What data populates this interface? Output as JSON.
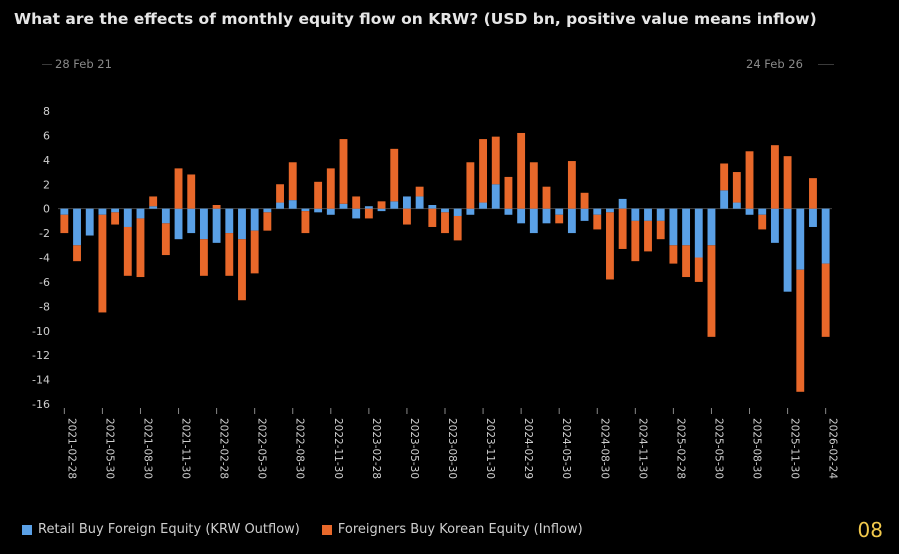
{
  "chart_data": {
    "type": "bar",
    "stacked": true,
    "title": "What are the effects of monthly equity flow on KRW? (USD bn, positive value means inflow)",
    "range_start": "28 Feb 21",
    "range_end": "24 Feb 26",
    "ylim": [
      -16,
      8
    ],
    "yticks": [
      8,
      6,
      4,
      2,
      0,
      -2,
      -4,
      -6,
      -8,
      -10,
      -12,
      -14,
      -16
    ],
    "x_tick_labels": [
      "2021-02-28",
      "2021-05-30",
      "2021-08-30",
      "2021-11-30",
      "2022-02-28",
      "2022-05-30",
      "2022-08-30",
      "2022-11-30",
      "2023-02-28",
      "2023-05-30",
      "2023-08-30",
      "2023-11-30",
      "2024-02-29",
      "2024-05-30",
      "2024-08-30",
      "2024-11-30",
      "2025-02-28",
      "2025-05-30",
      "2025-08-30",
      "2025-11-30",
      "2026-02-24"
    ],
    "categories": [
      "2021-02",
      "2021-03",
      "2021-04",
      "2021-05",
      "2021-06",
      "2021-07",
      "2021-08",
      "2021-09",
      "2021-10",
      "2021-11",
      "2021-12",
      "2022-01",
      "2022-02",
      "2022-03",
      "2022-04",
      "2022-05",
      "2022-06",
      "2022-07",
      "2022-08",
      "2022-09",
      "2022-10",
      "2022-11",
      "2022-12",
      "2023-01",
      "2023-02",
      "2023-03",
      "2023-04",
      "2023-05",
      "2023-06",
      "2023-07",
      "2023-08",
      "2023-09",
      "2023-10",
      "2023-11",
      "2023-12",
      "2024-01",
      "2024-02",
      "2024-03",
      "2024-04",
      "2024-05",
      "2024-06",
      "2024-07",
      "2024-08",
      "2024-09",
      "2024-10",
      "2024-11",
      "2024-12",
      "2025-01",
      "2025-02",
      "2025-03",
      "2025-04",
      "2025-05",
      "2025-06",
      "2025-07",
      "2025-08",
      "2025-09",
      "2025-10",
      "2025-11",
      "2025-12",
      "2026-01",
      "2026-02"
    ],
    "series": [
      {
        "name": "Retail Buy Foreign Equity (KRW Outflow)",
        "color": "#5aa0e6",
        "values": [
          -0.5,
          -3.0,
          -2.2,
          -0.5,
          -0.3,
          -1.5,
          -0.8,
          0.2,
          -1.2,
          -2.5,
          -2.0,
          -2.5,
          -2.8,
          -2.0,
          -2.5,
          -1.8,
          -0.3,
          0.5,
          0.7,
          -0.2,
          -0.3,
          -0.5,
          0.4,
          -0.8,
          0.2,
          -0.2,
          0.6,
          1.0,
          1.0,
          0.3,
          -0.3,
          -0.6,
          -0.5,
          0.5,
          2.0,
          -0.5,
          -1.2,
          -2.0,
          -1.2,
          -0.5,
          -2.0,
          -1.0,
          -0.5,
          -0.3,
          0.8,
          -1.0,
          -1.0,
          -1.0,
          -3.0,
          -3.0,
          -4.0,
          -3.0,
          1.5,
          0.5,
          -0.5,
          -0.5,
          -2.8,
          -6.8,
          -5.0,
          -1.5,
          -4.5
        ]
      },
      {
        "name": "Foreigners Buy Korean Equity (Inflow)",
        "color": "#e8682a",
        "values": [
          -1.5,
          -1.3,
          0.0,
          -8.0,
          -1.0,
          -4.0,
          -4.8,
          0.8,
          -2.6,
          3.3,
          2.8,
          -3.0,
          0.3,
          -3.5,
          -5.0,
          -3.5,
          -1.5,
          1.5,
          3.1,
          -1.8,
          2.2,
          3.3,
          5.3,
          1.0,
          -0.8,
          0.6,
          4.3,
          -1.3,
          0.8,
          -1.5,
          -1.7,
          -2.0,
          3.8,
          5.2,
          3.9,
          2.6,
          6.2,
          3.8,
          1.8,
          -0.7,
          3.9,
          1.3,
          -1.2,
          -5.5,
          -3.3,
          -3.3,
          -2.5,
          -1.5,
          -1.5,
          -2.6,
          -2.0,
          -7.5,
          2.2,
          2.5,
          4.7,
          -1.2,
          5.2,
          4.3,
          -10.0,
          2.5,
          -6.0
        ]
      }
    ],
    "corner_label": "08"
  }
}
